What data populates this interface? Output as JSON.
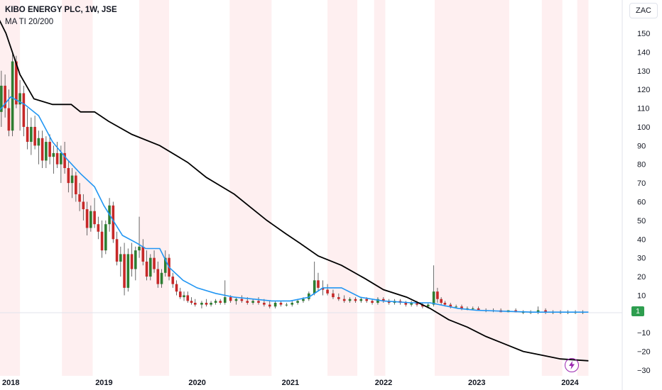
{
  "legend": {
    "title": "KIBO ENERGY PLC, 1W, JSE",
    "indicator": "MA TI 20/200"
  },
  "currency_label": "ZAC",
  "last_price_label": "1",
  "flash_icon": "lightning-icon",
  "colors": {
    "up": "#2e7d32",
    "down": "#c62828",
    "ma20": "#2196f3",
    "ma200": "#000000",
    "shade": "#fde8ea",
    "badge": "#2e9e4f",
    "flash": "#9c27b0"
  },
  "chart_data": {
    "type": "candlestick",
    "title": "KIBO ENERGY PLC, 1W, JSE",
    "ylim": [
      -30,
      160
    ],
    "y_ticks": [
      150,
      140,
      130,
      120,
      110,
      100,
      90,
      80,
      70,
      60,
      50,
      40,
      30,
      20,
      10,
      0,
      -10,
      -20,
      -30
    ],
    "y_tick_labels": [
      "150",
      "140",
      "130",
      "120",
      "110",
      "100",
      "90",
      "80",
      "70",
      "60",
      "50",
      "40",
      "30",
      "20",
      "10",
      "",
      "−10",
      "−20",
      "−30"
    ],
    "x_labels": [
      {
        "label": "2018",
        "date": 2018.0
      },
      {
        "label": "2019",
        "date": 2019.0
      },
      {
        "label": "2020",
        "date": 2020.0
      },
      {
        "label": "2021",
        "date": 2021.0
      },
      {
        "label": "2022",
        "date": 2022.0
      },
      {
        "label": "2023",
        "date": 2023.0
      },
      {
        "label": "2024",
        "date": 2024.0
      }
    ],
    "xlim": [
      2017.8,
      2024.95
    ],
    "series": [
      {
        "name": "MA 20",
        "points": [
          [
            2017.8,
            105
          ],
          [
            2017.9,
            110
          ],
          [
            2018.0,
            116
          ],
          [
            2018.15,
            112
          ],
          [
            2018.3,
            106
          ],
          [
            2018.45,
            92
          ],
          [
            2018.6,
            83
          ],
          [
            2018.75,
            75
          ],
          [
            2018.9,
            68
          ],
          [
            2019.0,
            58
          ],
          [
            2019.1,
            50
          ],
          [
            2019.2,
            42
          ],
          [
            2019.35,
            38
          ],
          [
            2019.45,
            35
          ],
          [
            2019.6,
            35
          ],
          [
            2019.7,
            25
          ],
          [
            2019.85,
            18
          ],
          [
            2020.0,
            14
          ],
          [
            2020.2,
            11
          ],
          [
            2020.4,
            9
          ],
          [
            2020.6,
            8
          ],
          [
            2020.8,
            7
          ],
          [
            2021.0,
            7
          ],
          [
            2021.2,
            9
          ],
          [
            2021.35,
            14
          ],
          [
            2021.55,
            14
          ],
          [
            2021.75,
            9
          ],
          [
            2022.0,
            7
          ],
          [
            2022.3,
            6
          ],
          [
            2022.5,
            6
          ],
          [
            2022.6,
            5
          ],
          [
            2022.8,
            3
          ],
          [
            2023.0,
            2
          ],
          [
            2023.3,
            1.5
          ],
          [
            2023.6,
            1
          ],
          [
            2024.0,
            1
          ],
          [
            2024.2,
            1
          ]
        ]
      },
      {
        "name": "MA 200",
        "points": [
          [
            2017.8,
            165
          ],
          [
            2017.95,
            150
          ],
          [
            2018.1,
            128
          ],
          [
            2018.25,
            115
          ],
          [
            2018.45,
            112
          ],
          [
            2018.65,
            112
          ],
          [
            2018.75,
            108
          ],
          [
            2018.9,
            108
          ],
          [
            2019.05,
            103
          ],
          [
            2019.3,
            96
          ],
          [
            2019.6,
            90
          ],
          [
            2019.9,
            81
          ],
          [
            2020.1,
            73
          ],
          [
            2020.4,
            64
          ],
          [
            2020.6,
            56
          ],
          [
            2020.75,
            50
          ],
          [
            2020.95,
            43
          ],
          [
            2021.1,
            38
          ],
          [
            2021.3,
            31
          ],
          [
            2021.55,
            26
          ],
          [
            2021.8,
            19
          ],
          [
            2022.0,
            13
          ],
          [
            2022.25,
            9
          ],
          [
            2022.5,
            3
          ],
          [
            2022.7,
            -3
          ],
          [
            2022.9,
            -7
          ],
          [
            2023.1,
            -12
          ],
          [
            2023.3,
            -16
          ],
          [
            2023.5,
            -20
          ],
          [
            2023.7,
            -22
          ],
          [
            2023.9,
            -24
          ],
          [
            2024.2,
            -25
          ]
        ]
      }
    ],
    "candles": [
      [
        2017.83,
        105,
        140,
        95,
        125
      ],
      [
        2017.87,
        125,
        135,
        100,
        108
      ],
      [
        2017.9,
        108,
        130,
        100,
        122
      ],
      [
        2017.94,
        122,
        128,
        105,
        110
      ],
      [
        2017.98,
        110,
        120,
        95,
        98
      ],
      [
        2018.02,
        98,
        140,
        95,
        135
      ],
      [
        2018.06,
        135,
        138,
        110,
        112
      ],
      [
        2018.1,
        112,
        125,
        98,
        118
      ],
      [
        2018.14,
        118,
        122,
        95,
        100
      ],
      [
        2018.18,
        100,
        110,
        88,
        92
      ],
      [
        2018.22,
        92,
        105,
        85,
        100
      ],
      [
        2018.26,
        100,
        106,
        88,
        90
      ],
      [
        2018.3,
        90,
        98,
        80,
        94
      ],
      [
        2018.34,
        94,
        98,
        78,
        82
      ],
      [
        2018.38,
        82,
        95,
        78,
        92
      ],
      [
        2018.42,
        92,
        96,
        80,
        84
      ],
      [
        2018.46,
        84,
        90,
        75,
        86
      ],
      [
        2018.5,
        86,
        92,
        78,
        80
      ],
      [
        2018.54,
        80,
        90,
        70,
        86
      ],
      [
        2018.58,
        86,
        92,
        75,
        78
      ],
      [
        2018.62,
        78,
        82,
        65,
        70
      ],
      [
        2018.66,
        70,
        78,
        62,
        74
      ],
      [
        2018.7,
        74,
        76,
        60,
        64
      ],
      [
        2018.74,
        64,
        70,
        55,
        60
      ],
      [
        2018.78,
        60,
        64,
        50,
        56
      ],
      [
        2018.82,
        56,
        60,
        42,
        46
      ],
      [
        2018.86,
        46,
        58,
        44,
        55
      ],
      [
        2018.9,
        55,
        62,
        46,
        48
      ],
      [
        2018.94,
        48,
        52,
        40,
        44
      ],
      [
        2018.98,
        44,
        50,
        30,
        34
      ],
      [
        2019.02,
        34,
        50,
        32,
        48
      ],
      [
        2019.06,
        48,
        62,
        44,
        58
      ],
      [
        2019.1,
        58,
        60,
        38,
        40
      ],
      [
        2019.14,
        40,
        44,
        26,
        28
      ],
      [
        2019.18,
        28,
        36,
        20,
        32
      ],
      [
        2019.22,
        32,
        38,
        10,
        14
      ],
      [
        2019.26,
        14,
        35,
        12,
        32
      ],
      [
        2019.3,
        32,
        38,
        20,
        24
      ],
      [
        2019.34,
        24,
        36,
        18,
        34
      ],
      [
        2019.38,
        34,
        52,
        30,
        36
      ],
      [
        2019.42,
        36,
        40,
        26,
        28
      ],
      [
        2019.46,
        28,
        34,
        18,
        20
      ],
      [
        2019.5,
        20,
        32,
        18,
        30
      ],
      [
        2019.54,
        30,
        34,
        22,
        24
      ],
      [
        2019.58,
        24,
        28,
        14,
        16
      ],
      [
        2019.62,
        16,
        24,
        14,
        22
      ],
      [
        2019.66,
        22,
        34,
        20,
        30
      ],
      [
        2019.7,
        30,
        32,
        18,
        20
      ],
      [
        2019.74,
        20,
        22,
        14,
        16
      ],
      [
        2019.78,
        16,
        18,
        10,
        12
      ],
      [
        2019.82,
        12,
        14,
        8,
        9
      ],
      [
        2019.86,
        9,
        12,
        7,
        10
      ],
      [
        2019.9,
        10,
        12,
        6,
        7
      ],
      [
        2019.94,
        7,
        9,
        5,
        6
      ],
      [
        2019.98,
        6,
        8,
        4,
        5
      ],
      [
        2020.05,
        5,
        7,
        3,
        6
      ],
      [
        2020.1,
        6,
        8,
        4,
        5
      ],
      [
        2020.15,
        5,
        7,
        4,
        6
      ],
      [
        2020.2,
        6,
        8,
        5,
        7
      ],
      [
        2020.25,
        7,
        8,
        5,
        6
      ],
      [
        2020.3,
        6,
        18,
        5,
        9
      ],
      [
        2020.36,
        9,
        10,
        6,
        7
      ],
      [
        2020.42,
        7,
        9,
        5,
        8
      ],
      [
        2020.48,
        8,
        10,
        6,
        7
      ],
      [
        2020.54,
        7,
        9,
        5,
        6
      ],
      [
        2020.6,
        6,
        8,
        5,
        7
      ],
      [
        2020.66,
        7,
        9,
        5,
        6
      ],
      [
        2020.72,
        6,
        8,
        4,
        5
      ],
      [
        2020.78,
        5,
        7,
        3,
        4
      ],
      [
        2020.84,
        4,
        7,
        3,
        6
      ],
      [
        2020.9,
        6,
        7,
        4,
        5
      ],
      [
        2020.96,
        5,
        6,
        4,
        5
      ],
      [
        2021.02,
        5,
        7,
        4,
        6
      ],
      [
        2021.08,
        6,
        8,
        5,
        7
      ],
      [
        2021.14,
        7,
        9,
        6,
        8
      ],
      [
        2021.2,
        8,
        12,
        7,
        11
      ],
      [
        2021.26,
        11,
        28,
        10,
        18
      ],
      [
        2021.3,
        18,
        22,
        12,
        14
      ],
      [
        2021.35,
        14,
        18,
        10,
        13
      ],
      [
        2021.4,
        13,
        16,
        10,
        11
      ],
      [
        2021.46,
        11,
        13,
        8,
        9
      ],
      [
        2021.52,
        9,
        11,
        7,
        8
      ],
      [
        2021.58,
        8,
        10,
        6,
        7
      ],
      [
        2021.64,
        7,
        9,
        6,
        8
      ],
      [
        2021.7,
        8,
        9,
        6,
        7
      ],
      [
        2021.76,
        7,
        9,
        6,
        8
      ],
      [
        2021.82,
        8,
        9,
        6,
        7
      ],
      [
        2021.88,
        7,
        8,
        5,
        6
      ],
      [
        2021.94,
        6,
        9,
        5,
        8
      ],
      [
        2022.0,
        8,
        9,
        6,
        7
      ],
      [
        2022.06,
        7,
        8,
        5,
        6
      ],
      [
        2022.12,
        6,
        8,
        5,
        7
      ],
      [
        2022.18,
        7,
        8,
        5,
        6
      ],
      [
        2022.24,
        6,
        7,
        4,
        5
      ],
      [
        2022.3,
        5,
        7,
        4,
        6
      ],
      [
        2022.36,
        6,
        7,
        4,
        5
      ],
      [
        2022.42,
        5,
        6,
        3,
        4
      ],
      [
        2022.48,
        4,
        6,
        3,
        5
      ],
      [
        2022.54,
        5,
        26,
        4,
        12
      ],
      [
        2022.58,
        12,
        14,
        6,
        8
      ],
      [
        2022.62,
        8,
        9,
        5,
        6
      ],
      [
        2022.66,
        6,
        7,
        4,
        5
      ],
      [
        2022.72,
        5,
        6,
        3,
        4
      ],
      [
        2022.78,
        4,
        5,
        3,
        4
      ],
      [
        2022.84,
        4,
        5,
        2,
        3
      ],
      [
        2022.9,
        3,
        4,
        2,
        3
      ],
      [
        2022.96,
        3,
        4,
        2,
        3
      ],
      [
        2023.02,
        3,
        4,
        2,
        2
      ],
      [
        2023.1,
        2,
        3,
        1,
        2
      ],
      [
        2023.18,
        2,
        3,
        1,
        2
      ],
      [
        2023.26,
        2,
        3,
        1,
        1
      ],
      [
        2023.34,
        1,
        2,
        1,
        2
      ],
      [
        2023.42,
        2,
        3,
        1,
        1
      ],
      [
        2023.5,
        1,
        2,
        0,
        1
      ],
      [
        2023.58,
        1,
        2,
        0,
        1
      ],
      [
        2023.66,
        1,
        4,
        0,
        2
      ],
      [
        2023.74,
        2,
        3,
        0,
        1
      ],
      [
        2023.82,
        1,
        2,
        0,
        1
      ],
      [
        2023.9,
        1,
        2,
        0,
        1
      ],
      [
        2023.98,
        1,
        2,
        0,
        1
      ],
      [
        2024.06,
        1,
        2,
        0,
        1
      ],
      [
        2024.14,
        1,
        2,
        0,
        1
      ]
    ],
    "shaded_ranges": [
      [
        2017.8,
        2018.1
      ],
      [
        2018.55,
        2018.88
      ],
      [
        2019.38,
        2019.7
      ],
      [
        2020.35,
        2020.8
      ],
      [
        2021.4,
        2021.72
      ],
      [
        2021.9,
        2022.02
      ],
      [
        2022.55,
        2023.35
      ],
      [
        2023.7,
        2023.92
      ],
      [
        2024.08,
        2024.2
      ]
    ]
  }
}
